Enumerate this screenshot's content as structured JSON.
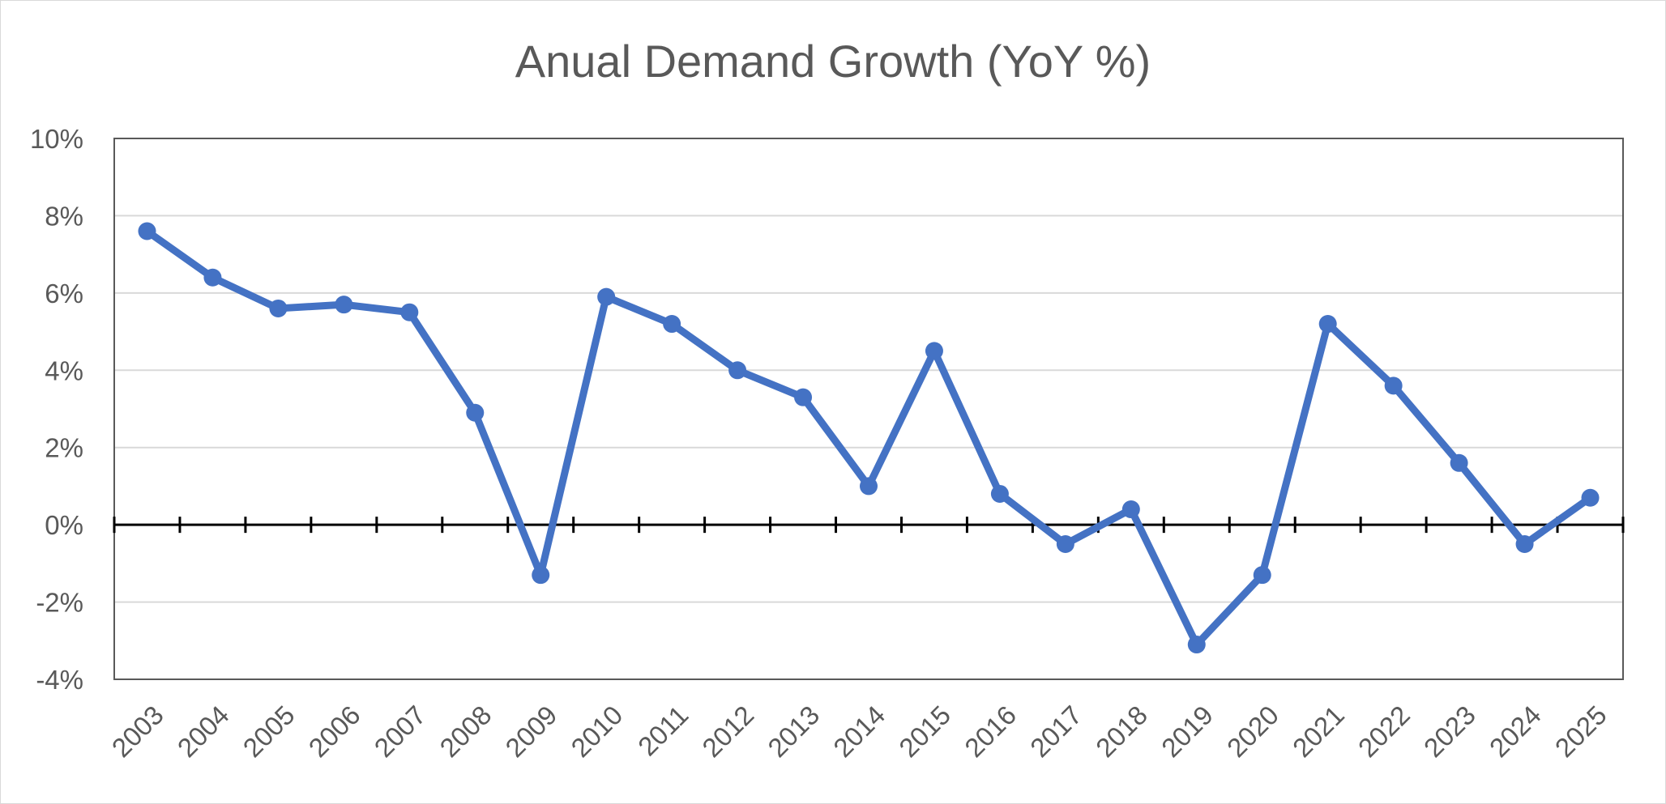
{
  "chart_data": {
    "type": "line",
    "title": "Anual Demand Growth (YoY %)",
    "xlabel": "",
    "ylabel": "",
    "categories": [
      "2003",
      "2004",
      "2005",
      "2006",
      "2007",
      "2008",
      "2009",
      "2010",
      "2011",
      "2012",
      "2013",
      "2014",
      "2015",
      "2016",
      "2017",
      "2018",
      "2019",
      "2020",
      "2021",
      "2022",
      "2023",
      "2024",
      "2025"
    ],
    "series": [
      {
        "values": [
          7.6,
          6.4,
          5.6,
          5.7,
          5.5,
          2.9,
          -1.3,
          5.9,
          5.2,
          4.0,
          3.3,
          1.0,
          4.5,
          0.8,
          -0.5,
          0.4,
          -3.1,
          -1.3,
          5.2,
          3.6,
          1.6,
          -0.5,
          0.7
        ]
      }
    ],
    "ylim": [
      -4,
      10
    ],
    "y_ticks": [
      -4,
      -2,
      0,
      2,
      4,
      6,
      8,
      10
    ],
    "y_tick_labels": [
      "-4%",
      "-2%",
      "0%",
      "2%",
      "4%",
      "6%",
      "8%",
      "10%"
    ],
    "grid": true,
    "legend": "none",
    "colors": {
      "line": "#4472C4",
      "grid": "#d9d9d9",
      "axis": "#000000",
      "plot_border": "#595959",
      "text": "#595959"
    }
  }
}
